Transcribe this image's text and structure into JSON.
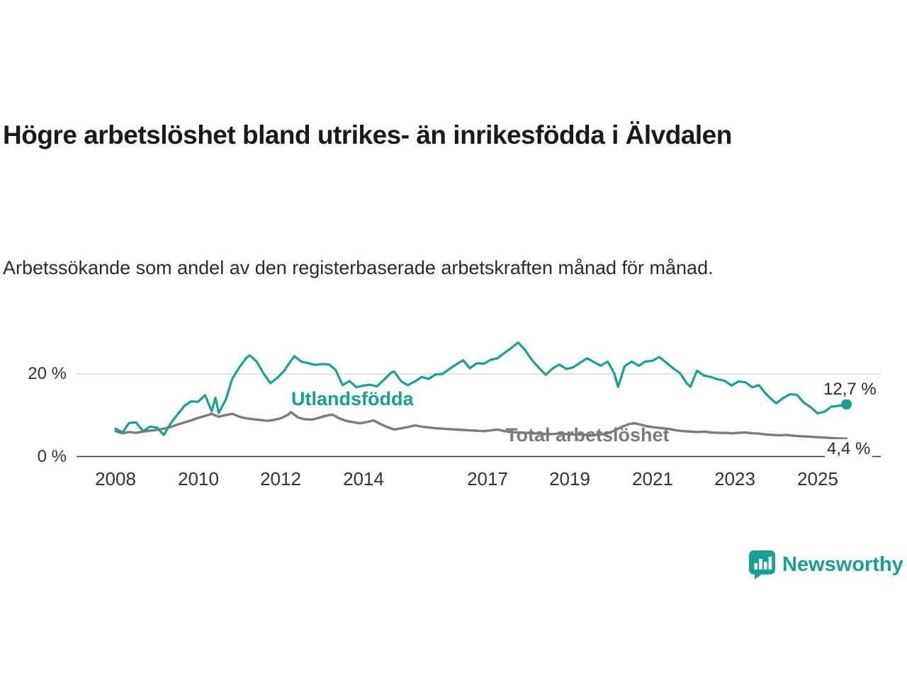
{
  "branding": {
    "name": "Newsworthy",
    "color": "#16a195",
    "icon": "bar-chart-speech-bubble-icon"
  },
  "colors": {
    "accent_teal": "#16a195",
    "line_gray": "#7b7b7b",
    "gridline": "#dcdcdc",
    "axis": "#333333",
    "text": "#1a1a1a"
  },
  "chart_data": {
    "type": "line",
    "title": "Högre arbetslöshet bland utrikes- än inrikesfödda i Älvdalen",
    "subtitle": "Arbetssökande som andel av den registerbaserade arbetskraften månad för månad.",
    "xlabel": "",
    "ylabel": "",
    "x_range": [
      2008,
      2025.7
    ],
    "ylim": [
      0,
      30
    ],
    "grid": "horizontal gridline at 20 %, dark baseline at 0 %",
    "legend": "inline labels next to lines",
    "yticks": [
      {
        "value": 20,
        "label": "20 %"
      },
      {
        "value": 0,
        "label": "0 %"
      }
    ],
    "xticks": [
      {
        "value": 2008,
        "label": "2008"
      },
      {
        "value": 2010,
        "label": "2010"
      },
      {
        "value": 2012,
        "label": "2012"
      },
      {
        "value": 2014,
        "label": "2014"
      },
      {
        "value": 2017,
        "label": "2017"
      },
      {
        "value": 2019,
        "label": "2019"
      },
      {
        "value": 2021,
        "label": "2021"
      },
      {
        "value": 2023,
        "label": "2023"
      },
      {
        "value": 2025,
        "label": "2025"
      }
    ],
    "series": [
      {
        "name": "Utlandsfödda",
        "color": "#16a195",
        "end_value": 12.7,
        "end_label": "12,7 %",
        "end_marker": "dot",
        "points": [
          [
            2008.0,
            6.8
          ],
          [
            2008.17,
            5.9
          ],
          [
            2008.33,
            8.2
          ],
          [
            2008.5,
            8.3
          ],
          [
            2008.67,
            6.2
          ],
          [
            2008.83,
            7.3
          ],
          [
            2009.0,
            7.1
          ],
          [
            2009.17,
            5.3
          ],
          [
            2009.33,
            8.0
          ],
          [
            2009.5,
            10.2
          ],
          [
            2009.67,
            12.3
          ],
          [
            2009.83,
            13.4
          ],
          [
            2010.0,
            13.3
          ],
          [
            2010.17,
            14.9
          ],
          [
            2010.33,
            11.0
          ],
          [
            2010.42,
            14.3
          ],
          [
            2010.5,
            10.6
          ],
          [
            2010.67,
            13.8
          ],
          [
            2010.83,
            18.9
          ],
          [
            2011.0,
            21.6
          ],
          [
            2011.17,
            23.9
          ],
          [
            2011.25,
            24.5
          ],
          [
            2011.42,
            23.0
          ],
          [
            2011.58,
            20.2
          ],
          [
            2011.75,
            17.8
          ],
          [
            2011.92,
            19.1
          ],
          [
            2012.08,
            20.7
          ],
          [
            2012.25,
            23.2
          ],
          [
            2012.33,
            24.3
          ],
          [
            2012.5,
            23.0
          ],
          [
            2012.67,
            22.6
          ],
          [
            2012.83,
            22.2
          ],
          [
            2013.0,
            22.4
          ],
          [
            2013.17,
            22.3
          ],
          [
            2013.33,
            21.0
          ],
          [
            2013.5,
            17.3
          ],
          [
            2013.67,
            18.3
          ],
          [
            2013.83,
            16.8
          ],
          [
            2014.0,
            17.2
          ],
          [
            2014.17,
            17.4
          ],
          [
            2014.33,
            17.0
          ],
          [
            2014.5,
            18.6
          ],
          [
            2014.67,
            20.3
          ],
          [
            2014.75,
            20.6
          ],
          [
            2014.92,
            18.2
          ],
          [
            2015.08,
            17.3
          ],
          [
            2015.25,
            18.2
          ],
          [
            2015.42,
            19.3
          ],
          [
            2015.58,
            18.8
          ],
          [
            2015.75,
            19.9
          ],
          [
            2015.92,
            20.0
          ],
          [
            2016.08,
            21.2
          ],
          [
            2016.25,
            22.3
          ],
          [
            2016.42,
            23.3
          ],
          [
            2016.58,
            21.4
          ],
          [
            2016.75,
            22.6
          ],
          [
            2016.92,
            22.5
          ],
          [
            2017.08,
            23.4
          ],
          [
            2017.25,
            23.8
          ],
          [
            2017.42,
            25.1
          ],
          [
            2017.58,
            26.2
          ],
          [
            2017.75,
            27.6
          ],
          [
            2017.92,
            25.8
          ],
          [
            2018.08,
            23.4
          ],
          [
            2018.25,
            21.5
          ],
          [
            2018.42,
            19.8
          ],
          [
            2018.58,
            21.3
          ],
          [
            2018.75,
            22.3
          ],
          [
            2018.92,
            21.2
          ],
          [
            2019.08,
            21.6
          ],
          [
            2019.25,
            22.7
          ],
          [
            2019.42,
            23.8
          ],
          [
            2019.58,
            22.9
          ],
          [
            2019.75,
            22.0
          ],
          [
            2019.92,
            23.0
          ],
          [
            2020.08,
            20.1
          ],
          [
            2020.17,
            16.9
          ],
          [
            2020.33,
            21.9
          ],
          [
            2020.5,
            23.0
          ],
          [
            2020.67,
            22.0
          ],
          [
            2020.83,
            23.0
          ],
          [
            2021.0,
            23.2
          ],
          [
            2021.17,
            24.1
          ],
          [
            2021.33,
            22.8
          ],
          [
            2021.5,
            21.4
          ],
          [
            2021.67,
            20.2
          ],
          [
            2021.83,
            17.8
          ],
          [
            2021.92,
            16.9
          ],
          [
            2022.08,
            20.8
          ],
          [
            2022.25,
            19.6
          ],
          [
            2022.42,
            19.3
          ],
          [
            2022.58,
            18.7
          ],
          [
            2022.75,
            18.4
          ],
          [
            2022.92,
            17.2
          ],
          [
            2023.08,
            18.2
          ],
          [
            2023.25,
            18.0
          ],
          [
            2023.42,
            16.8
          ],
          [
            2023.58,
            17.3
          ],
          [
            2023.75,
            15.2
          ],
          [
            2023.92,
            13.6
          ],
          [
            2024.0,
            12.9
          ],
          [
            2024.17,
            14.2
          ],
          [
            2024.33,
            15.1
          ],
          [
            2024.5,
            15.0
          ],
          [
            2024.67,
            13.1
          ],
          [
            2024.83,
            12.0
          ],
          [
            2025.0,
            10.5
          ],
          [
            2025.17,
            10.9
          ],
          [
            2025.33,
            12.1
          ],
          [
            2025.5,
            12.3
          ],
          [
            2025.7,
            12.7
          ]
        ]
      },
      {
        "name": "Total arbetslöshet",
        "color": "#7b7b7b",
        "end_value": 4.4,
        "end_label": "4,4 %",
        "end_marker": "none",
        "points": [
          [
            2008.0,
            6.2
          ],
          [
            2008.17,
            5.7
          ],
          [
            2008.33,
            6.0
          ],
          [
            2008.5,
            5.8
          ],
          [
            2008.67,
            6.1
          ],
          [
            2008.83,
            6.3
          ],
          [
            2009.0,
            6.5
          ],
          [
            2009.17,
            6.8
          ],
          [
            2009.33,
            7.2
          ],
          [
            2009.5,
            7.8
          ],
          [
            2009.67,
            8.3
          ],
          [
            2009.83,
            8.8
          ],
          [
            2010.0,
            9.4
          ],
          [
            2010.17,
            9.9
          ],
          [
            2010.33,
            10.4
          ],
          [
            2010.5,
            9.7
          ],
          [
            2010.67,
            10.1
          ],
          [
            2010.83,
            10.4
          ],
          [
            2011.0,
            9.7
          ],
          [
            2011.17,
            9.3
          ],
          [
            2011.33,
            9.1
          ],
          [
            2011.5,
            8.9
          ],
          [
            2011.67,
            8.7
          ],
          [
            2011.83,
            8.9
          ],
          [
            2012.0,
            9.3
          ],
          [
            2012.17,
            10.1
          ],
          [
            2012.25,
            10.8
          ],
          [
            2012.42,
            9.5
          ],
          [
            2012.58,
            9.1
          ],
          [
            2012.75,
            9.0
          ],
          [
            2012.92,
            9.4
          ],
          [
            2013.08,
            9.9
          ],
          [
            2013.25,
            10.2
          ],
          [
            2013.42,
            9.3
          ],
          [
            2013.58,
            8.7
          ],
          [
            2013.75,
            8.4
          ],
          [
            2013.92,
            8.1
          ],
          [
            2014.08,
            8.4
          ],
          [
            2014.25,
            8.8
          ],
          [
            2014.42,
            7.9
          ],
          [
            2014.58,
            7.2
          ],
          [
            2014.75,
            6.6
          ],
          [
            2014.92,
            6.9
          ],
          [
            2015.08,
            7.2
          ],
          [
            2015.25,
            7.6
          ],
          [
            2015.42,
            7.3
          ],
          [
            2015.58,
            7.1
          ],
          [
            2015.75,
            6.9
          ],
          [
            2015.92,
            6.8
          ],
          [
            2016.08,
            6.7
          ],
          [
            2016.25,
            6.6
          ],
          [
            2016.42,
            6.5
          ],
          [
            2016.58,
            6.4
          ],
          [
            2016.75,
            6.3
          ],
          [
            2016.92,
            6.2
          ],
          [
            2017.08,
            6.4
          ],
          [
            2017.25,
            6.6
          ],
          [
            2017.42,
            6.2
          ],
          [
            2017.58,
            6.0
          ],
          [
            2017.75,
            5.9
          ],
          [
            2017.92,
            5.8
          ],
          [
            2018.08,
            5.7
          ],
          [
            2018.25,
            5.6
          ],
          [
            2018.42,
            5.5
          ],
          [
            2018.58,
            5.5
          ],
          [
            2018.75,
            5.6
          ],
          [
            2018.92,
            5.5
          ],
          [
            2019.08,
            5.4
          ],
          [
            2019.25,
            5.4
          ],
          [
            2019.42,
            5.3
          ],
          [
            2019.58,
            5.3
          ],
          [
            2019.75,
            5.4
          ],
          [
            2019.92,
            5.7
          ],
          [
            2020.08,
            6.3
          ],
          [
            2020.25,
            7.2
          ],
          [
            2020.42,
            7.9
          ],
          [
            2020.58,
            8.1
          ],
          [
            2020.75,
            7.7
          ],
          [
            2020.92,
            7.3
          ],
          [
            2021.08,
            7.1
          ],
          [
            2021.25,
            6.9
          ],
          [
            2021.42,
            6.7
          ],
          [
            2021.58,
            6.4
          ],
          [
            2021.75,
            6.2
          ],
          [
            2021.92,
            6.1
          ],
          [
            2022.08,
            6.0
          ],
          [
            2022.25,
            6.1
          ],
          [
            2022.42,
            5.9
          ],
          [
            2022.58,
            5.8
          ],
          [
            2022.75,
            5.8
          ],
          [
            2022.92,
            5.7
          ],
          [
            2023.08,
            5.8
          ],
          [
            2023.25,
            5.9
          ],
          [
            2023.42,
            5.7
          ],
          [
            2023.58,
            5.6
          ],
          [
            2023.75,
            5.4
          ],
          [
            2023.92,
            5.3
          ],
          [
            2024.08,
            5.2
          ],
          [
            2024.25,
            5.3
          ],
          [
            2024.42,
            5.1
          ],
          [
            2024.58,
            5.0
          ],
          [
            2024.75,
            4.9
          ],
          [
            2024.92,
            4.8
          ],
          [
            2025.08,
            4.7
          ],
          [
            2025.25,
            4.6
          ],
          [
            2025.42,
            4.5
          ],
          [
            2025.7,
            4.4
          ]
        ]
      }
    ]
  }
}
